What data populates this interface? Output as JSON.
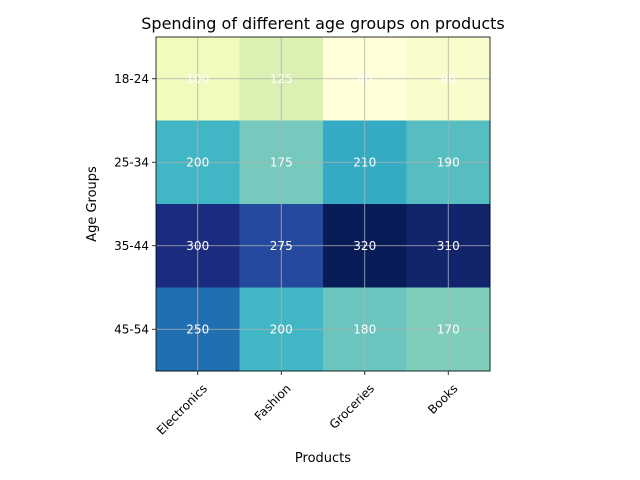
{
  "chart_data": {
    "type": "heatmap",
    "title": "Spending of different age groups on products",
    "xlabel": "Products",
    "ylabel": "Age Groups",
    "x_categories": [
      "Electronics",
      "Fashion",
      "Groceries",
      "Books"
    ],
    "y_categories": [
      "18-24",
      "25-34",
      "35-44",
      "45-54"
    ],
    "values": [
      [
        100,
        125,
        80,
        90
      ],
      [
        200,
        175,
        210,
        190
      ],
      [
        300,
        275,
        320,
        310
      ],
      [
        250,
        200,
        180,
        170
      ]
    ],
    "colormap": "YlGnBu",
    "value_range": [
      80,
      320
    ],
    "grid": true,
    "cell_labels": true,
    "cell_label_color": "#ffffff"
  }
}
